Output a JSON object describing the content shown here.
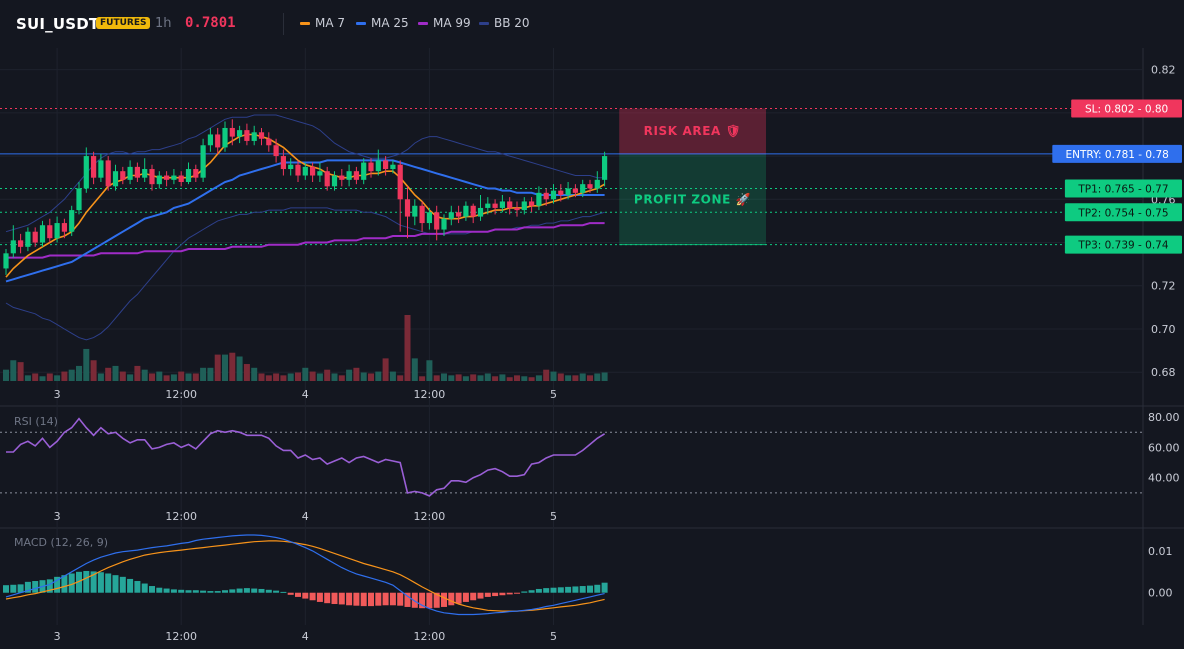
{
  "header": {
    "symbol": "SUI_USDT",
    "badge": "FUTURES",
    "timeframe": "1h",
    "price": "0.7801",
    "legend": [
      {
        "label": "MA 7",
        "color": "#f7931a"
      },
      {
        "label": "MA 25",
        "color": "#2f6fed"
      },
      {
        "label": "MA 99",
        "color": "#a02cc7"
      },
      {
        "label": "BB 20",
        "color": "#2d3f8a"
      }
    ]
  },
  "chart_data": {
    "type": "candlestick",
    "x_tick_labels": [
      "3",
      "12:00",
      "4",
      "12:00",
      "5"
    ],
    "price_axis": {
      "ticks": [
        "0.82",
        "0.80",
        "0.78",
        "0.76",
        "0.74",
        "0.72",
        "0.70",
        "0.68"
      ],
      "range": [
        0.675,
        0.83
      ]
    },
    "levels": [
      {
        "label": "SL: 0.802 - 0.80",
        "value": 0.802,
        "color": "#f0365d",
        "style": "dotted"
      },
      {
        "label": "ENTRY: 0.781 - 0.78",
        "value": 0.781,
        "color": "#2f6fed",
        "style": "solid"
      },
      {
        "label": "TP1: 0.765 - 0.77",
        "value": 0.765,
        "color": "#0ecb81",
        "style": "dotted"
      },
      {
        "label": "TP2: 0.754 - 0.75",
        "value": 0.754,
        "color": "#0ecb81",
        "style": "dotted"
      },
      {
        "label": "TP3: 0.739 - 0.74",
        "value": 0.739,
        "color": "#0ecb81",
        "style": "dotted"
      }
    ],
    "zones": [
      {
        "label": "RISK AREA 🛡",
        "from": 0.781,
        "to": 0.802,
        "color": "#f0365d"
      },
      {
        "label": "PROFIT ZONE 🚀",
        "from": 0.739,
        "to": 0.781,
        "color": "#0ecb81"
      }
    ],
    "candles": [
      [
        0.728,
        0.735,
        0.725,
        0.737
      ],
      [
        0.735,
        0.741,
        0.733,
        0.748
      ],
      [
        0.741,
        0.738,
        0.735,
        0.744
      ],
      [
        0.738,
        0.745,
        0.736,
        0.747
      ],
      [
        0.745,
        0.74,
        0.738,
        0.747
      ],
      [
        0.74,
        0.748,
        0.738,
        0.75
      ],
      [
        0.748,
        0.742,
        0.74,
        0.751
      ],
      [
        0.742,
        0.749,
        0.74,
        0.752
      ],
      [
        0.749,
        0.745,
        0.742,
        0.751
      ],
      [
        0.745,
        0.755,
        0.743,
        0.757
      ],
      [
        0.755,
        0.765,
        0.753,
        0.768
      ],
      [
        0.765,
        0.78,
        0.763,
        0.784
      ],
      [
        0.78,
        0.77,
        0.767,
        0.782
      ],
      [
        0.77,
        0.778,
        0.768,
        0.781
      ],
      [
        0.778,
        0.766,
        0.764,
        0.78
      ],
      [
        0.766,
        0.773,
        0.764,
        0.776
      ],
      [
        0.773,
        0.769,
        0.767,
        0.775
      ],
      [
        0.769,
        0.775,
        0.767,
        0.778
      ],
      [
        0.775,
        0.77,
        0.768,
        0.777
      ],
      [
        0.77,
        0.774,
        0.768,
        0.779
      ],
      [
        0.774,
        0.767,
        0.764,
        0.776
      ],
      [
        0.767,
        0.771,
        0.765,
        0.773
      ],
      [
        0.771,
        0.769,
        0.766,
        0.773
      ],
      [
        0.769,
        0.771,
        0.767,
        0.774
      ],
      [
        0.771,
        0.768,
        0.766,
        0.773
      ],
      [
        0.768,
        0.774,
        0.767,
        0.777
      ],
      [
        0.774,
        0.77,
        0.768,
        0.776
      ],
      [
        0.77,
        0.785,
        0.768,
        0.788
      ],
      [
        0.785,
        0.79,
        0.782,
        0.793
      ],
      [
        0.79,
        0.784,
        0.781,
        0.793
      ],
      [
        0.784,
        0.793,
        0.782,
        0.796
      ],
      [
        0.793,
        0.789,
        0.785,
        0.797
      ],
      [
        0.789,
        0.792,
        0.786,
        0.794
      ],
      [
        0.792,
        0.787,
        0.785,
        0.795
      ],
      [
        0.787,
        0.791,
        0.785,
        0.794
      ],
      [
        0.791,
        0.788,
        0.785,
        0.793
      ],
      [
        0.788,
        0.785,
        0.782,
        0.791
      ],
      [
        0.785,
        0.78,
        0.777,
        0.788
      ],
      [
        0.78,
        0.774,
        0.771,
        0.783
      ],
      [
        0.774,
        0.776,
        0.771,
        0.779
      ],
      [
        0.776,
        0.771,
        0.768,
        0.778
      ],
      [
        0.771,
        0.775,
        0.769,
        0.777
      ],
      [
        0.775,
        0.771,
        0.768,
        0.777
      ],
      [
        0.771,
        0.773,
        0.768,
        0.777
      ],
      [
        0.773,
        0.766,
        0.764,
        0.775
      ],
      [
        0.766,
        0.771,
        0.764,
        0.773
      ],
      [
        0.771,
        0.769,
        0.766,
        0.774
      ],
      [
        0.769,
        0.773,
        0.766,
        0.776
      ],
      [
        0.773,
        0.769,
        0.767,
        0.775
      ],
      [
        0.769,
        0.777,
        0.767,
        0.779
      ],
      [
        0.777,
        0.773,
        0.77,
        0.779
      ],
      [
        0.773,
        0.778,
        0.771,
        0.783
      ],
      [
        0.778,
        0.774,
        0.771,
        0.78
      ],
      [
        0.774,
        0.776,
        0.772,
        0.778
      ],
      [
        0.776,
        0.76,
        0.745,
        0.778
      ],
      [
        0.76,
        0.752,
        0.742,
        0.766
      ],
      [
        0.752,
        0.757,
        0.748,
        0.76
      ],
      [
        0.757,
        0.749,
        0.745,
        0.759
      ],
      [
        0.749,
        0.754,
        0.746,
        0.756
      ],
      [
        0.754,
        0.746,
        0.741,
        0.757
      ],
      [
        0.746,
        0.751,
        0.743,
        0.753
      ],
      [
        0.751,
        0.754,
        0.748,
        0.757
      ],
      [
        0.754,
        0.752,
        0.749,
        0.757
      ],
      [
        0.752,
        0.757,
        0.75,
        0.759
      ],
      [
        0.757,
        0.752,
        0.749,
        0.758
      ],
      [
        0.752,
        0.756,
        0.75,
        0.762
      ],
      [
        0.756,
        0.758,
        0.753,
        0.761
      ],
      [
        0.758,
        0.756,
        0.753,
        0.76
      ],
      [
        0.756,
        0.759,
        0.754,
        0.762
      ],
      [
        0.759,
        0.756,
        0.753,
        0.761
      ],
      [
        0.756,
        0.755,
        0.752,
        0.759
      ],
      [
        0.755,
        0.759,
        0.753,
        0.761
      ],
      [
        0.759,
        0.757,
        0.754,
        0.761
      ],
      [
        0.757,
        0.763,
        0.755,
        0.766
      ],
      [
        0.763,
        0.76,
        0.757,
        0.765
      ],
      [
        0.76,
        0.764,
        0.758,
        0.767
      ],
      [
        0.764,
        0.762,
        0.759,
        0.767
      ],
      [
        0.762,
        0.765,
        0.76,
        0.768
      ],
      [
        0.765,
        0.763,
        0.761,
        0.767
      ],
      [
        0.763,
        0.767,
        0.761,
        0.769
      ],
      [
        0.767,
        0.765,
        0.763,
        0.769
      ],
      [
        0.765,
        0.769,
        0.763,
        0.773
      ],
      [
        0.769,
        0.78,
        0.766,
        0.782
      ]
    ],
    "ma7": [
      0.724,
      0.728,
      0.731,
      0.734,
      0.736,
      0.738,
      0.74,
      0.742,
      0.743,
      0.745,
      0.749,
      0.754,
      0.758,
      0.762,
      0.766,
      0.768,
      0.769,
      0.771,
      0.771,
      0.772,
      0.771,
      0.77,
      0.77,
      0.77,
      0.77,
      0.77,
      0.771,
      0.774,
      0.777,
      0.781,
      0.785,
      0.787,
      0.789,
      0.79,
      0.79,
      0.789,
      0.788,
      0.786,
      0.784,
      0.781,
      0.778,
      0.776,
      0.775,
      0.774,
      0.772,
      0.771,
      0.77,
      0.77,
      0.771,
      0.771,
      0.772,
      0.772,
      0.773,
      0.773,
      0.77,
      0.766,
      0.762,
      0.759,
      0.755,
      0.752,
      0.751,
      0.751,
      0.751,
      0.752,
      0.752,
      0.753,
      0.754,
      0.755,
      0.755,
      0.756,
      0.756,
      0.756,
      0.757,
      0.757,
      0.758,
      0.759,
      0.76,
      0.761,
      0.762,
      0.763,
      0.764,
      0.765,
      0.767
    ],
    "ma25": [
      0.722,
      0.723,
      0.724,
      0.725,
      0.726,
      0.727,
      0.728,
      0.729,
      0.73,
      0.731,
      0.733,
      0.735,
      0.737,
      0.739,
      0.741,
      0.743,
      0.745,
      0.747,
      0.749,
      0.751,
      0.752,
      0.753,
      0.754,
      0.756,
      0.757,
      0.758,
      0.76,
      0.762,
      0.764,
      0.766,
      0.768,
      0.769,
      0.771,
      0.772,
      0.773,
      0.774,
      0.775,
      0.776,
      0.777,
      0.777,
      0.777,
      0.777,
      0.777,
      0.777,
      0.778,
      0.778,
      0.778,
      0.778,
      0.778,
      0.778,
      0.778,
      0.778,
      0.778,
      0.778,
      0.777,
      0.776,
      0.775,
      0.774,
      0.773,
      0.772,
      0.771,
      0.77,
      0.769,
      0.768,
      0.767,
      0.766,
      0.765,
      0.765,
      0.764,
      0.764,
      0.763,
      0.763,
      0.763,
      0.762,
      0.762,
      0.762,
      0.762,
      0.762,
      0.762,
      0.762,
      0.762,
      0.762,
      0.762
    ],
    "ma99": [
      0.733,
      0.733,
      0.733,
      0.733,
      0.733,
      0.733,
      0.734,
      0.734,
      0.734,
      0.734,
      0.734,
      0.734,
      0.734,
      0.735,
      0.735,
      0.735,
      0.735,
      0.735,
      0.735,
      0.736,
      0.736,
      0.736,
      0.736,
      0.736,
      0.736,
      0.737,
      0.737,
      0.737,
      0.737,
      0.737,
      0.737,
      0.738,
      0.738,
      0.738,
      0.738,
      0.738,
      0.739,
      0.739,
      0.739,
      0.739,
      0.739,
      0.74,
      0.74,
      0.74,
      0.74,
      0.741,
      0.741,
      0.741,
      0.741,
      0.742,
      0.742,
      0.742,
      0.742,
      0.743,
      0.743,
      0.743,
      0.743,
      0.744,
      0.744,
      0.744,
      0.744,
      0.745,
      0.745,
      0.745,
      0.745,
      0.745,
      0.745,
      0.746,
      0.746,
      0.746,
      0.746,
      0.747,
      0.747,
      0.747,
      0.747,
      0.747,
      0.748,
      0.748,
      0.748,
      0.748,
      0.749,
      0.749,
      0.749
    ],
    "bb_upper": [
      0.745,
      0.746,
      0.747,
      0.748,
      0.75,
      0.752,
      0.754,
      0.757,
      0.76,
      0.764,
      0.768,
      0.772,
      0.776,
      0.779,
      0.781,
      0.782,
      0.782,
      0.781,
      0.782,
      0.782,
      0.783,
      0.783,
      0.784,
      0.785,
      0.786,
      0.788,
      0.789,
      0.791,
      0.793,
      0.795,
      0.797,
      0.798,
      0.798,
      0.798,
      0.799,
      0.799,
      0.799,
      0.799,
      0.798,
      0.797,
      0.796,
      0.795,
      0.794,
      0.792,
      0.789,
      0.786,
      0.784,
      0.782,
      0.781,
      0.78,
      0.779,
      0.779,
      0.779,
      0.78,
      0.781,
      0.783,
      0.786,
      0.788,
      0.789,
      0.789,
      0.788,
      0.787,
      0.786,
      0.785,
      0.784,
      0.783,
      0.782,
      0.782,
      0.781,
      0.78,
      0.779,
      0.778,
      0.777,
      0.776,
      0.775,
      0.774,
      0.773,
      0.772,
      0.771,
      0.771,
      0.771,
      0.77,
      0.77
    ],
    "bb_lower": [
      0.712,
      0.71,
      0.709,
      0.708,
      0.707,
      0.705,
      0.704,
      0.702,
      0.7,
      0.698,
      0.696,
      0.695,
      0.696,
      0.698,
      0.701,
      0.705,
      0.709,
      0.713,
      0.716,
      0.72,
      0.724,
      0.728,
      0.732,
      0.736,
      0.739,
      0.742,
      0.744,
      0.746,
      0.748,
      0.75,
      0.751,
      0.752,
      0.753,
      0.753,
      0.754,
      0.754,
      0.755,
      0.755,
      0.755,
      0.756,
      0.756,
      0.756,
      0.756,
      0.756,
      0.756,
      0.755,
      0.755,
      0.755,
      0.755,
      0.754,
      0.754,
      0.753,
      0.752,
      0.75,
      0.748,
      0.747,
      0.746,
      0.745,
      0.744,
      0.744,
      0.744,
      0.744,
      0.744,
      0.744,
      0.745,
      0.745,
      0.745,
      0.746,
      0.746,
      0.746,
      0.747,
      0.747,
      0.748,
      0.748,
      0.749,
      0.749,
      0.75,
      0.75,
      0.751,
      0.752,
      0.752,
      0.753,
      0.754
    ],
    "volume": [
      12,
      22,
      20,
      6,
      8,
      5,
      8,
      6,
      10,
      12,
      16,
      34,
      22,
      8,
      14,
      16,
      10,
      7,
      16,
      12,
      8,
      10,
      6,
      7,
      10,
      8,
      8,
      14,
      14,
      28,
      28,
      30,
      26,
      18,
      14,
      8,
      6,
      8,
      6,
      8,
      9,
      14,
      10,
      8,
      12,
      8,
      6,
      12,
      14,
      9,
      8,
      10,
      24,
      10,
      6,
      70,
      24,
      5,
      22,
      6,
      8,
      6,
      7,
      5,
      7,
      6,
      8,
      5,
      7,
      4,
      6,
      5,
      4,
      6,
      12,
      10,
      8,
      6,
      6,
      8,
      6,
      8,
      9
    ],
    "rsi": {
      "label": "RSI (14)",
      "ticks": [
        "80.00",
        "60.00",
        "40.00"
      ],
      "levels": [
        70,
        30
      ],
      "range": [
        22,
        86
      ],
      "values": [
        57,
        57,
        62,
        64,
        61,
        66,
        60,
        64,
        70,
        73,
        79,
        73,
        68,
        73,
        69,
        70,
        66,
        63,
        65,
        65,
        59,
        60,
        62,
        63,
        60,
        62,
        59,
        64,
        69,
        71,
        70,
        71,
        70,
        68,
        68,
        68,
        66,
        61,
        58,
        58,
        53,
        55,
        52,
        53,
        49,
        51,
        53,
        50,
        53,
        54,
        52,
        50,
        52,
        51,
        50,
        30,
        31,
        30,
        28,
        32,
        33,
        38,
        38,
        37,
        40,
        42,
        45,
        46,
        44,
        41,
        41,
        42,
        49,
        50,
        53,
        55,
        55,
        55,
        55,
        58,
        62,
        66,
        69
      ]
    },
    "macd": {
      "label": "MACD (12, 26, 9)",
      "ticks": [
        "0.01",
        "0.00"
      ],
      "range": [
        -0.007,
        0.015
      ],
      "macd": [
        -0.001,
        -0.0005,
        0,
        0.0005,
        0.001,
        0.0015,
        0.002,
        0.003,
        0.004,
        0.005,
        0.006,
        0.007,
        0.0078,
        0.0085,
        0.009,
        0.0095,
        0.0098,
        0.01,
        0.0102,
        0.0105,
        0.0108,
        0.011,
        0.0112,
        0.0115,
        0.0118,
        0.012,
        0.0125,
        0.0128,
        0.013,
        0.0132,
        0.0134,
        0.0136,
        0.0137,
        0.0138,
        0.0138,
        0.0137,
        0.0135,
        0.0132,
        0.0128,
        0.0122,
        0.0115,
        0.0108,
        0.01,
        0.009,
        0.008,
        0.007,
        0.006,
        0.0052,
        0.0045,
        0.004,
        0.0035,
        0.003,
        0.0025,
        0.0018,
        0.0005,
        -0.0008,
        -0.002,
        -0.003,
        -0.0038,
        -0.0044,
        -0.0048,
        -0.005,
        -0.0052,
        -0.0052,
        -0.0052,
        -0.0051,
        -0.005,
        -0.0048,
        -0.0047,
        -0.0045,
        -0.0044,
        -0.0042,
        -0.004,
        -0.0037,
        -0.0033,
        -0.003,
        -0.0026,
        -0.0022,
        -0.0018,
        -0.0014,
        -0.001,
        -0.0006,
        -0.0002
      ],
      "signal": [
        -0.0015,
        -0.0012,
        -0.0009,
        -0.0005,
        -0.0002,
        0.0002,
        0.0006,
        0.001,
        0.0015,
        0.002,
        0.0027,
        0.0035,
        0.0043,
        0.0052,
        0.006,
        0.0067,
        0.0074,
        0.008,
        0.0085,
        0.009,
        0.0093,
        0.0096,
        0.0098,
        0.01,
        0.0102,
        0.0104,
        0.0106,
        0.0108,
        0.011,
        0.0112,
        0.0114,
        0.0116,
        0.0118,
        0.012,
        0.0122,
        0.0123,
        0.0124,
        0.0124,
        0.0123,
        0.0121,
        0.0118,
        0.0115,
        0.0111,
        0.0106,
        0.01,
        0.0094,
        0.0088,
        0.0082,
        0.0076,
        0.007,
        0.0065,
        0.006,
        0.0055,
        0.005,
        0.0043,
        0.0034,
        0.0024,
        0.0014,
        0.0005,
        -0.0004,
        -0.0012,
        -0.002,
        -0.0027,
        -0.0032,
        -0.0036,
        -0.0039,
        -0.0042,
        -0.0043,
        -0.0044,
        -0.0044,
        -0.0044,
        -0.0043,
        -0.0042,
        -0.004,
        -0.0038,
        -0.0036,
        -0.0034,
        -0.0032,
        -0.003,
        -0.0027,
        -0.0024,
        -0.002,
        -0.0016
      ],
      "hist": [
        0.0018,
        0.0019,
        0.002,
        0.0026,
        0.0028,
        0.003,
        0.0032,
        0.0038,
        0.0042,
        0.0046,
        0.005,
        0.0052,
        0.0051,
        0.0049,
        0.0046,
        0.0042,
        0.0038,
        0.0033,
        0.0028,
        0.0022,
        0.0016,
        0.0012,
        0.001,
        0.0008,
        0.0007,
        0.0006,
        0.0006,
        0.0005,
        0.0004,
        0.0004,
        0.0006,
        0.0008,
        0.001,
        0.0011,
        0.001,
        0.0009,
        0.0007,
        0.0005,
        0.0002,
        -0.0005,
        -0.001,
        -0.0014,
        -0.0018,
        -0.0022,
        -0.0025,
        -0.0027,
        -0.0028,
        -0.003,
        -0.0031,
        -0.0032,
        -0.0032,
        -0.0031,
        -0.003,
        -0.003,
        -0.0031,
        -0.0034,
        -0.0036,
        -0.0037,
        -0.0037,
        -0.0036,
        -0.0034,
        -0.003,
        -0.0026,
        -0.0022,
        -0.0018,
        -0.0014,
        -0.001,
        -0.0008,
        -0.0006,
        -0.0004,
        -0.0002,
        0.0003,
        0.0006,
        0.0009,
        0.0011,
        0.0012,
        0.0013,
        0.0014,
        0.0015,
        0.0016,
        0.0017,
        0.0019,
        0.0024
      ]
    }
  },
  "colors": {
    "up": "#26a69a",
    "up_bright": "#0ecb81",
    "down": "#f0365d",
    "grid": "#1e222d",
    "axis_text": "#c9ccd6",
    "muted": "#6f7585"
  }
}
